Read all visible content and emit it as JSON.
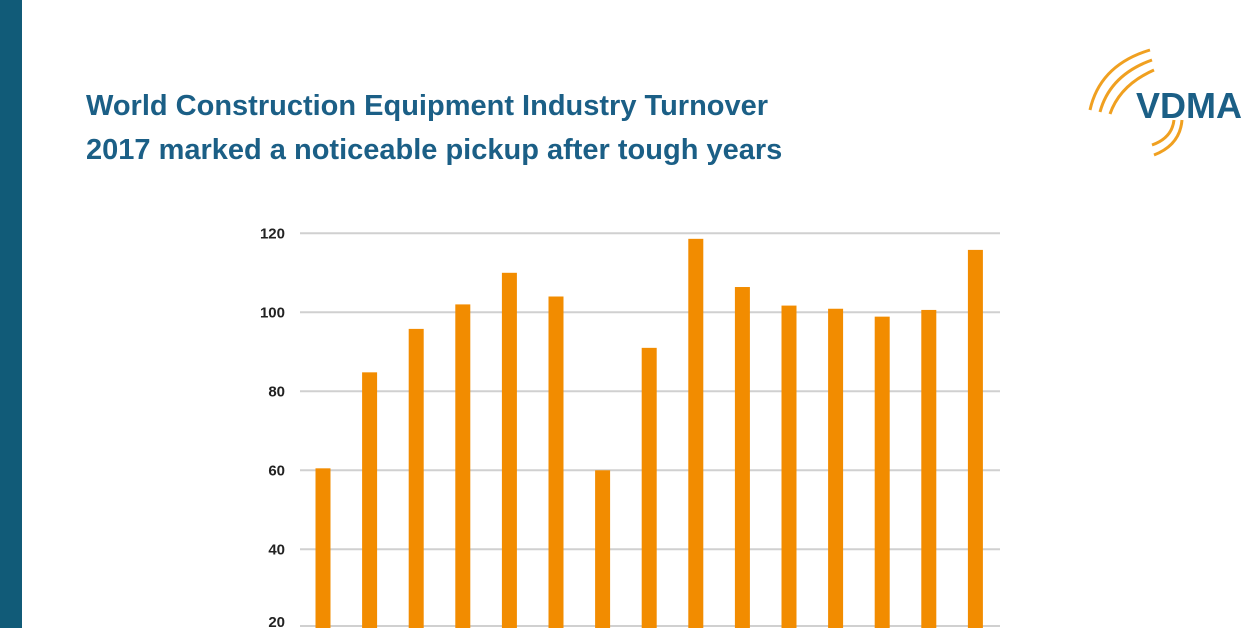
{
  "header": {
    "title_line1": "World Construction Equipment Industry Turnover",
    "title_line2": "2017 marked a noticeable pickup after tough years"
  },
  "logo": {
    "text": "VDMA"
  },
  "colors": {
    "bar": "#f28c00",
    "title": "#1b5f86",
    "sidebar": "#115b78",
    "grid": "#d0d0d0"
  },
  "chart_data": {
    "type": "bar",
    "title": "",
    "xlabel": "",
    "ylabel": "",
    "ylim": [
      0,
      120
    ],
    "yticks": [
      20,
      40,
      60,
      80,
      100,
      120
    ],
    "grid": true,
    "values": [
      60.5,
      84.8,
      95.8,
      102,
      110,
      104,
      60,
      91,
      118.6,
      106.4,
      101.7,
      100.9,
      98.9,
      100.6,
      115.8
    ]
  }
}
